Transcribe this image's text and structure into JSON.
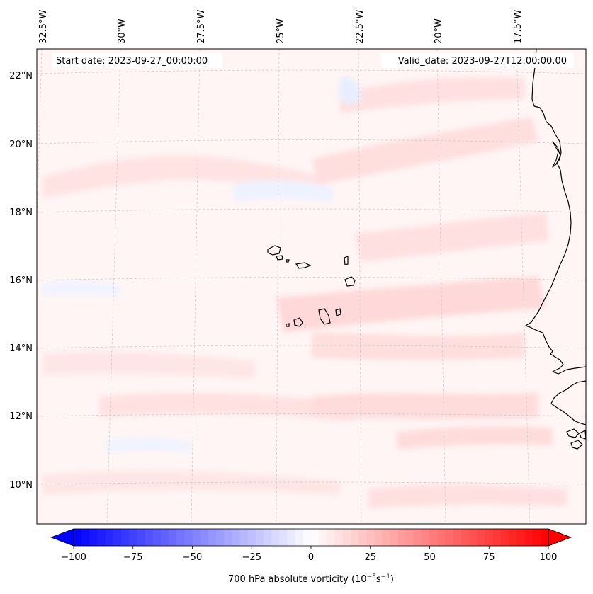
{
  "header": {
    "start_date": "Start date: 2023-09-27_00:00:00",
    "valid_date": "Valid_date: 2023-09-27T12:00:00.00"
  },
  "lon_labels": [
    "32.5°W",
    "30°W",
    "27.5°W",
    "25°W",
    "22.5°W",
    "20°W",
    "17.5°W"
  ],
  "lat_labels": [
    "22°N",
    "20°N",
    "18°N",
    "16°N",
    "14°N",
    "12°N",
    "10°N"
  ],
  "colorbar": {
    "label_main": "700 hPa absolute vorticity (10",
    "label_exp1": "−5",
    "label_mid": "s",
    "label_exp2": "−1",
    "label_end": ")",
    "ticks": [
      "−100",
      "−75",
      "−50",
      "−25",
      "0",
      "25",
      "50",
      "75",
      "100"
    ],
    "vmin": -100,
    "vmax": 100,
    "levels": 60,
    "colors": {
      "neg": "#0000ff",
      "mid": "#ffffff",
      "pos": "#ff0000"
    }
  },
  "colors": {
    "background_field": "#fff5f5",
    "positive_anomaly": "#ffdcdc",
    "negative_anomaly": "#eef2ff",
    "coastline": "#000000",
    "gridline": "#b0b0b0"
  }
}
